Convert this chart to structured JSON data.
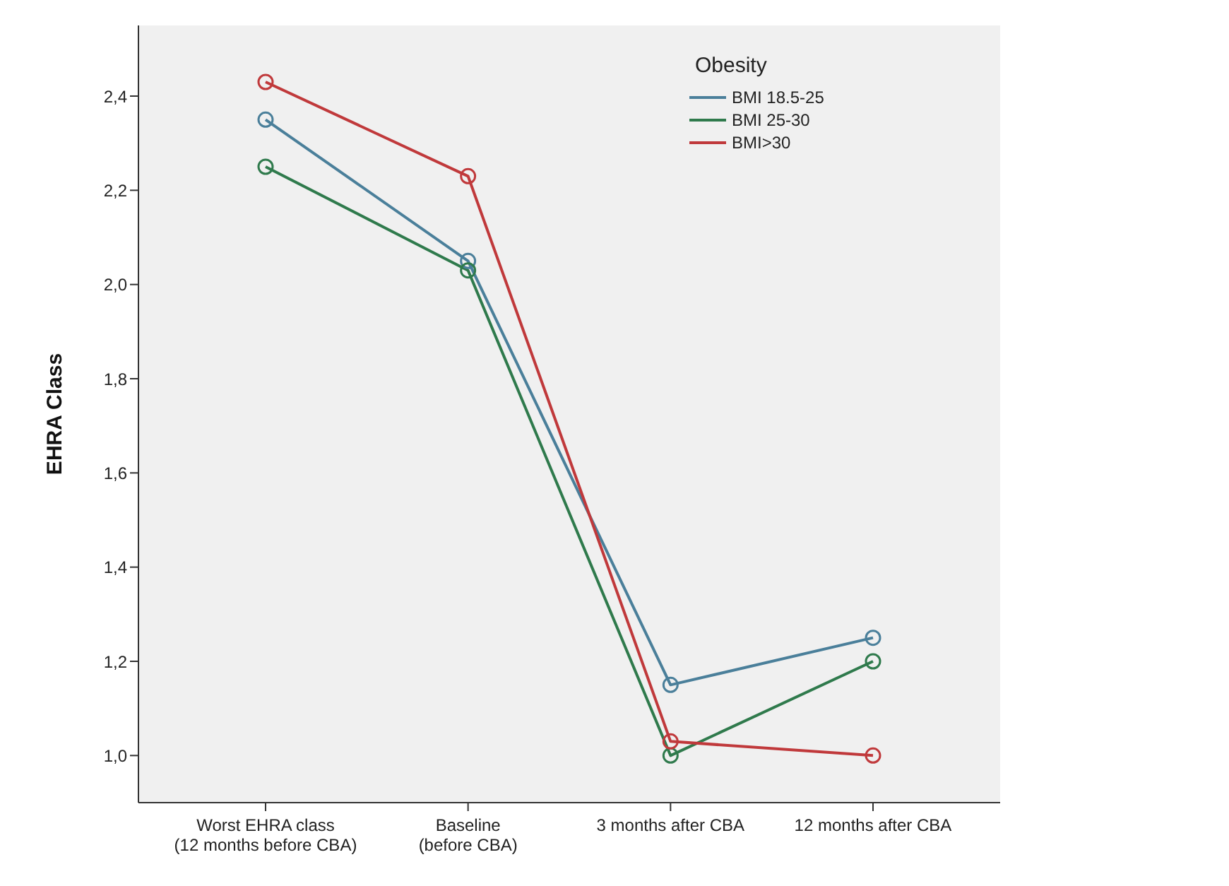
{
  "chart_data": {
    "type": "line",
    "ylabel": "EHRA Class",
    "legend_title": "Obesity",
    "legend": "top right",
    "marker": "circle",
    "grid": false,
    "categories": [
      "Worst EHRA class\n(12 months before CBA)",
      "Baseline\n(before CBA)",
      "3 months after CBA",
      "12 months after CBA"
    ],
    "ylim": [
      0.9,
      2.55
    ],
    "yticks": [
      {
        "value": 1.0,
        "label": "1,0"
      },
      {
        "value": 1.2,
        "label": "1,2"
      },
      {
        "value": 1.4,
        "label": "1,4"
      },
      {
        "value": 1.6,
        "label": "1,6"
      },
      {
        "value": 1.8,
        "label": "1,8"
      },
      {
        "value": 2.0,
        "label": "2,0"
      },
      {
        "value": 2.2,
        "label": "2,2"
      },
      {
        "value": 2.4,
        "label": "2,4"
      }
    ],
    "series": [
      {
        "name": "BMI 18.5-25",
        "color": "#4a7f9a",
        "values": [
          2.35,
          2.05,
          1.15,
          1.25
        ]
      },
      {
        "name": "BMI 25-30",
        "color": "#2f7a4c",
        "values": [
          2.25,
          2.03,
          1.0,
          1.2
        ]
      },
      {
        "name": "BMI>30",
        "color": "#c0393b",
        "values": [
          2.43,
          2.23,
          1.03,
          1.0
        ]
      }
    ]
  }
}
